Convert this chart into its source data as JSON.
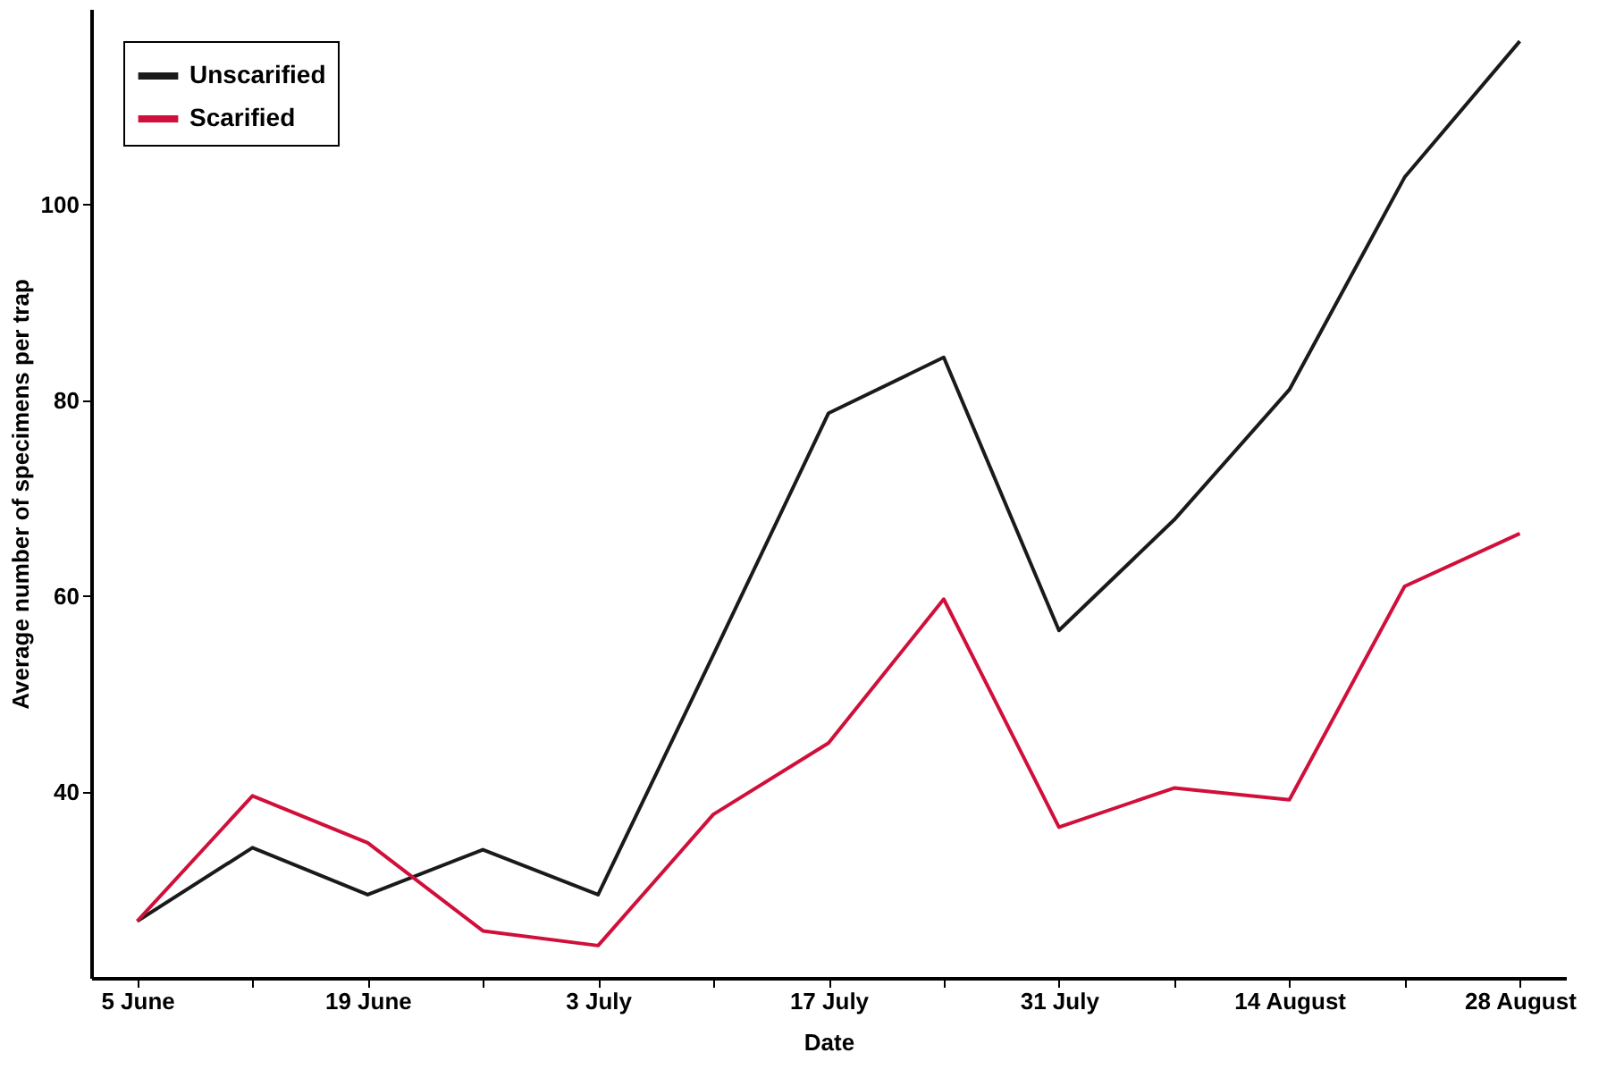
{
  "chart_data": {
    "type": "line",
    "xlabel": "Date",
    "ylabel": "Average number of specimens per trap",
    "categories": [
      "5 June",
      null,
      "19 June",
      null,
      "3 July",
      null,
      "17 July",
      null,
      "31 July",
      null,
      "14 August",
      null,
      "28 August"
    ],
    "series": [
      {
        "name": "Unscarified",
        "color": "#1a1a1a",
        "values": [
          26.8,
          34.3,
          29.5,
          34.1,
          29.5,
          54,
          78.7,
          84.4,
          56.5,
          67.8,
          81.1,
          102.8,
          116.7
        ]
      },
      {
        "name": "Scarified",
        "color": "#d0103a",
        "values": [
          26.8,
          39.6,
          34.8,
          25.8,
          24.3,
          37.7,
          45,
          59.7,
          36.4,
          40.4,
          39.2,
          61,
          66.4
        ]
      }
    ],
    "ylim": [
      21,
      120
    ],
    "yticks": [
      40,
      60,
      80,
      100
    ],
    "grid": false,
    "legend": "top left",
    "marker": "none",
    "line_style": "solid"
  }
}
